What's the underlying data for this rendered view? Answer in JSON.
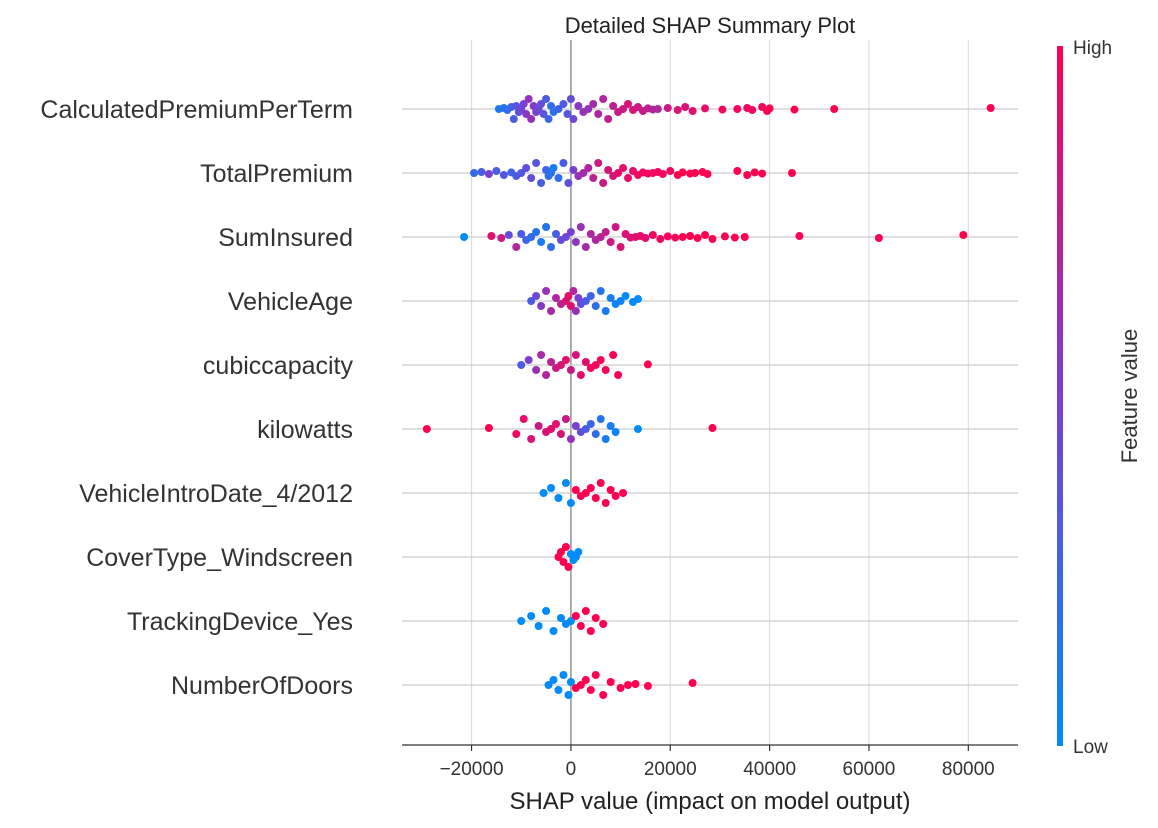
{
  "chart_data": {
    "type": "scatter",
    "subtype": "shap-beeswarm",
    "title": "Detailed SHAP Summary Plot",
    "xlabel": "SHAP value (impact on model output)",
    "ylabel": "",
    "xlim": [
      -34000,
      90000
    ],
    "xticks": [
      -20000,
      0,
      20000,
      40000,
      60000,
      80000
    ],
    "xtick_labels": [
      "−20000",
      "0",
      "20000",
      "40000",
      "60000",
      "80000"
    ],
    "grid": "vertical lines at x ticks; horizontal line per feature",
    "colorbar": {
      "title": "Feature value",
      "high_label": "High",
      "low_label": "Low",
      "low_color": "#008bfb",
      "high_color": "#ff0051"
    },
    "features": [
      {
        "name": "CalculatedPremiumPerTerm",
        "points": [
          [
            -14500,
            0.1
          ],
          [
            -13500,
            0.15
          ],
          [
            -12800,
            0.2
          ],
          [
            -12000,
            0.25
          ],
          [
            -11500,
            0.3
          ],
          [
            -11000,
            0.35
          ],
          [
            -10500,
            0.4
          ],
          [
            -10000,
            0.45
          ],
          [
            -9500,
            0.5
          ],
          [
            -9000,
            0.55
          ],
          [
            -8500,
            0.6
          ],
          [
            -8000,
            0.6
          ],
          [
            -7500,
            0.55
          ],
          [
            -7000,
            0.5
          ],
          [
            -6500,
            0.45
          ],
          [
            -6000,
            0.4
          ],
          [
            -5500,
            0.35
          ],
          [
            -5000,
            0.3
          ],
          [
            -4500,
            0.25
          ],
          [
            -4000,
            0.2
          ],
          [
            -3500,
            0.15
          ],
          [
            -2500,
            0.25
          ],
          [
            -1500,
            0.3
          ],
          [
            -700,
            0.35
          ],
          [
            0,
            0.4
          ],
          [
            500,
            0.45
          ],
          [
            1500,
            0.55
          ],
          [
            2500,
            0.6
          ],
          [
            3500,
            0.6
          ],
          [
            4500,
            0.65
          ],
          [
            5500,
            0.7
          ],
          [
            6500,
            0.7
          ],
          [
            7500,
            0.75
          ],
          [
            8500,
            0.75
          ],
          [
            9500,
            0.8
          ],
          [
            10500,
            0.8
          ],
          [
            11500,
            0.85
          ],
          [
            12500,
            0.85
          ],
          [
            13500,
            0.8
          ],
          [
            14500,
            0.8
          ],
          [
            15500,
            0.75
          ],
          [
            16500,
            0.7
          ],
          [
            17500,
            0.7
          ],
          [
            19500,
            0.8
          ],
          [
            21500,
            0.85
          ],
          [
            23000,
            0.85
          ],
          [
            24500,
            0.9
          ],
          [
            27000,
            0.9
          ],
          [
            30500,
            0.95
          ],
          [
            33500,
            0.95
          ],
          [
            35500,
            0.95
          ],
          [
            36500,
            0.95
          ],
          [
            38500,
            0.95
          ],
          [
            39500,
            1.0
          ],
          [
            40000,
            1.0
          ],
          [
            45000,
            1.0
          ],
          [
            53000,
            1.0
          ],
          [
            84500,
            1.0
          ]
        ]
      },
      {
        "name": "TotalPremium",
        "points": [
          [
            -19500,
            0.2
          ],
          [
            -18000,
            0.3
          ],
          [
            -16500,
            0.5
          ],
          [
            -15000,
            0.3
          ],
          [
            -13500,
            0.35
          ],
          [
            -12000,
            0.25
          ],
          [
            -11000,
            0.3
          ],
          [
            -10000,
            0.35
          ],
          [
            -9000,
            0.4
          ],
          [
            -8000,
            0.4
          ],
          [
            -7000,
            0.35
          ],
          [
            -6000,
            0.3
          ],
          [
            -5000,
            0.25
          ],
          [
            -4500,
            0.2
          ],
          [
            -4000,
            0.15
          ],
          [
            -3500,
            0.1
          ],
          [
            -2500,
            0.2
          ],
          [
            -1500,
            0.3
          ],
          [
            -500,
            0.4
          ],
          [
            500,
            0.5
          ],
          [
            1500,
            0.6
          ],
          [
            2500,
            0.65
          ],
          [
            3500,
            0.7
          ],
          [
            4500,
            0.75
          ],
          [
            5500,
            0.8
          ],
          [
            6500,
            0.8
          ],
          [
            7500,
            0.85
          ],
          [
            8500,
            0.85
          ],
          [
            9500,
            0.9
          ],
          [
            10500,
            0.9
          ],
          [
            11500,
            0.9
          ],
          [
            12500,
            0.9
          ],
          [
            13500,
            0.95
          ],
          [
            14500,
            0.95
          ],
          [
            15500,
            0.95
          ],
          [
            16500,
            0.95
          ],
          [
            17500,
            0.95
          ],
          [
            18500,
            0.95
          ],
          [
            20000,
            0.95
          ],
          [
            21500,
            1.0
          ],
          [
            22500,
            1.0
          ],
          [
            24000,
            1.0
          ],
          [
            25000,
            1.0
          ],
          [
            26500,
            1.0
          ],
          [
            27500,
            1.0
          ],
          [
            33500,
            1.0
          ],
          [
            35500,
            1.0
          ],
          [
            37000,
            1.0
          ],
          [
            38500,
            1.0
          ],
          [
            44500,
            1.0
          ]
        ]
      },
      {
        "name": "SumInsured",
        "points": [
          [
            -21500,
            0.0
          ],
          [
            -16000,
            0.9
          ],
          [
            -14000,
            0.8
          ],
          [
            -12500,
            0.4
          ],
          [
            -11000,
            0.7
          ],
          [
            -10000,
            0.3
          ],
          [
            -9000,
            0.25
          ],
          [
            -8000,
            0.2
          ],
          [
            -7000,
            0.15
          ],
          [
            -6000,
            0.1
          ],
          [
            -5000,
            0.15
          ],
          [
            -4000,
            0.2
          ],
          [
            -3000,
            0.3
          ],
          [
            -2000,
            0.4
          ],
          [
            -1000,
            0.45
          ],
          [
            0,
            0.5
          ],
          [
            1000,
            0.55
          ],
          [
            2000,
            0.6
          ],
          [
            3000,
            0.65
          ],
          [
            4000,
            0.7
          ],
          [
            5000,
            0.7
          ],
          [
            6000,
            0.75
          ],
          [
            7000,
            0.75
          ],
          [
            8000,
            0.8
          ],
          [
            9000,
            0.8
          ],
          [
            10000,
            0.85
          ],
          [
            11000,
            0.85
          ],
          [
            12000,
            0.85
          ],
          [
            13000,
            0.9
          ],
          [
            14000,
            0.9
          ],
          [
            15000,
            0.9
          ],
          [
            16500,
            0.95
          ],
          [
            18000,
            0.95
          ],
          [
            19500,
            0.95
          ],
          [
            21000,
            0.95
          ],
          [
            22500,
            1.0
          ],
          [
            24000,
            1.0
          ],
          [
            25500,
            1.0
          ],
          [
            27000,
            1.0
          ],
          [
            28500,
            1.0
          ],
          [
            31000,
            1.0
          ],
          [
            33000,
            1.0
          ],
          [
            35000,
            1.0
          ],
          [
            46000,
            1.0
          ],
          [
            62000,
            1.0
          ],
          [
            79000,
            1.0
          ]
        ]
      },
      {
        "name": "VehicleAge",
        "points": [
          [
            -8000,
            0.3
          ],
          [
            -7000,
            0.45
          ],
          [
            -6000,
            0.55
          ],
          [
            -5000,
            0.6
          ],
          [
            -4000,
            0.65
          ],
          [
            -3000,
            0.7
          ],
          [
            -2000,
            0.75
          ],
          [
            -1000,
            0.85
          ],
          [
            -500,
            0.9
          ],
          [
            0,
            0.9
          ],
          [
            500,
            0.7
          ],
          [
            1000,
            0.6
          ],
          [
            1500,
            0.5
          ],
          [
            2000,
            0.4
          ],
          [
            3000,
            0.3
          ],
          [
            4000,
            0.25
          ],
          [
            5000,
            0.2
          ],
          [
            6000,
            0.15
          ],
          [
            7000,
            0.1
          ],
          [
            8000,
            0.1
          ],
          [
            9000,
            0.05
          ],
          [
            10000,
            0.05
          ],
          [
            11000,
            0.0
          ],
          [
            12500,
            0.0
          ],
          [
            13500,
            0.0
          ]
        ]
      },
      {
        "name": "cubiccapacity",
        "points": [
          [
            -10000,
            0.3
          ],
          [
            -8500,
            0.5
          ],
          [
            -7000,
            0.6
          ],
          [
            -6000,
            0.65
          ],
          [
            -5000,
            0.7
          ],
          [
            -4000,
            0.75
          ],
          [
            -3000,
            0.8
          ],
          [
            -2000,
            0.85
          ],
          [
            -1000,
            0.9
          ],
          [
            0,
            0.8
          ],
          [
            1000,
            0.85
          ],
          [
            2000,
            0.9
          ],
          [
            3000,
            0.9
          ],
          [
            4000,
            0.95
          ],
          [
            5000,
            0.95
          ],
          [
            6000,
            0.95
          ],
          [
            7000,
            0.95
          ],
          [
            8500,
            1.0
          ],
          [
            9500,
            1.0
          ],
          [
            15500,
            1.0
          ]
        ]
      },
      {
        "name": "kilowatts",
        "points": [
          [
            -29000,
            1.0
          ],
          [
            -16500,
            1.0
          ],
          [
            -11000,
            0.95
          ],
          [
            -9500,
            0.9
          ],
          [
            -8000,
            0.85
          ],
          [
            -6500,
            0.8
          ],
          [
            -5000,
            0.85
          ],
          [
            -4000,
            0.9
          ],
          [
            -3000,
            0.9
          ],
          [
            -2000,
            0.85
          ],
          [
            -1000,
            0.8
          ],
          [
            0,
            0.6
          ],
          [
            1000,
            0.5
          ],
          [
            2000,
            0.4
          ],
          [
            3000,
            0.3
          ],
          [
            4000,
            0.25
          ],
          [
            5000,
            0.2
          ],
          [
            6000,
            0.15
          ],
          [
            7000,
            0.1
          ],
          [
            8000,
            0.1
          ],
          [
            9000,
            0.05
          ],
          [
            13500,
            0.0
          ],
          [
            28500,
            1.0
          ]
        ]
      },
      {
        "name": "VehicleIntroDate_4/2012",
        "points": [
          [
            -5500,
            0.0
          ],
          [
            -4000,
            0.0
          ],
          [
            -2500,
            0.0
          ],
          [
            -1000,
            0.0
          ],
          [
            0,
            0.0
          ],
          [
            1000,
            1.0
          ],
          [
            2000,
            1.0
          ],
          [
            3000,
            1.0
          ],
          [
            4000,
            1.0
          ],
          [
            5000,
            1.0
          ],
          [
            6000,
            1.0
          ],
          [
            7000,
            1.0
          ],
          [
            8000,
            1.0
          ],
          [
            9000,
            1.0
          ],
          [
            10500,
            1.0
          ]
        ]
      },
      {
        "name": "CoverType_Windscreen",
        "points": [
          [
            -2500,
            1.0
          ],
          [
            -2000,
            1.0
          ],
          [
            -1500,
            1.0
          ],
          [
            -1000,
            1.0
          ],
          [
            -500,
            1.0
          ],
          [
            0,
            0.0
          ],
          [
            500,
            0.0
          ],
          [
            1000,
            0.0
          ],
          [
            1500,
            0.0
          ]
        ]
      },
      {
        "name": "TrackingDevice_Yes",
        "points": [
          [
            -10000,
            0.0
          ],
          [
            -8000,
            0.0
          ],
          [
            -6500,
            0.0
          ],
          [
            -5000,
            0.0
          ],
          [
            -3500,
            0.0
          ],
          [
            -2000,
            0.0
          ],
          [
            -1000,
            0.0
          ],
          [
            0,
            0.0
          ],
          [
            1000,
            1.0
          ],
          [
            2000,
            1.0
          ],
          [
            3000,
            1.0
          ],
          [
            4000,
            1.0
          ],
          [
            5000,
            1.0
          ],
          [
            6500,
            1.0
          ]
        ]
      },
      {
        "name": "NumberOfDoors",
        "points": [
          [
            -4500,
            0.0
          ],
          [
            -3500,
            0.0
          ],
          [
            -2500,
            0.0
          ],
          [
            -1500,
            0.0
          ],
          [
            -500,
            0.0
          ],
          [
            0,
            0.0
          ],
          [
            1000,
            1.0
          ],
          [
            2000,
            1.0
          ],
          [
            3000,
            1.0
          ],
          [
            4000,
            1.0
          ],
          [
            5000,
            1.0
          ],
          [
            6500,
            1.0
          ],
          [
            8000,
            1.0
          ],
          [
            10000,
            1.0
          ],
          [
            11500,
            1.0
          ],
          [
            13000,
            1.0
          ],
          [
            15500,
            1.0
          ],
          [
            24500,
            1.0
          ]
        ]
      }
    ]
  }
}
